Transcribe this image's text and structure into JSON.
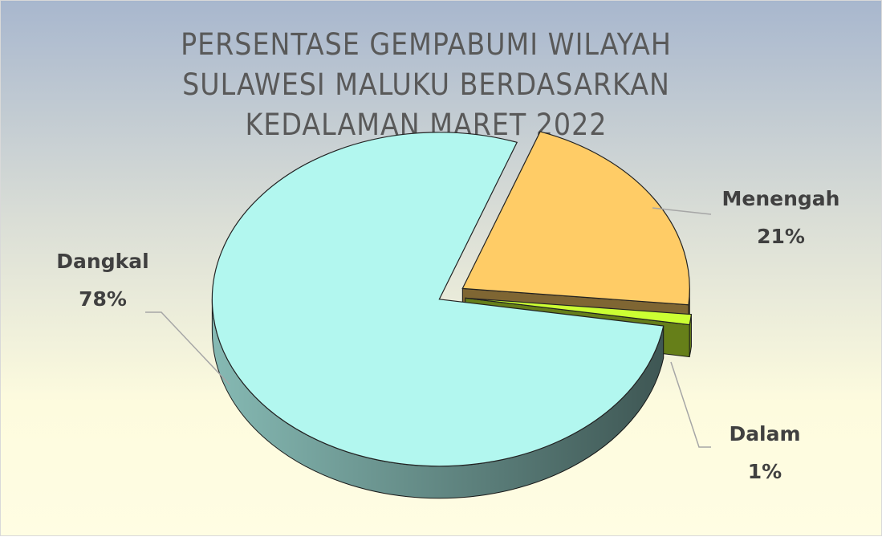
{
  "chart_data": {
    "type": "pie",
    "title": "PERSENTASE GEMPABUMI WILAYAH SULAWESI MALUKU BERDASARKAN KEDALAMAN MARET 2022",
    "categories": [
      "Menengah",
      "Dalam",
      "Dangkal"
    ],
    "values": [
      21,
      1,
      78
    ],
    "value_labels": [
      "21%",
      "1%",
      "78%"
    ],
    "colors": [
      "#ffcc66",
      "#ccff33",
      "#b2f7ef"
    ]
  }
}
